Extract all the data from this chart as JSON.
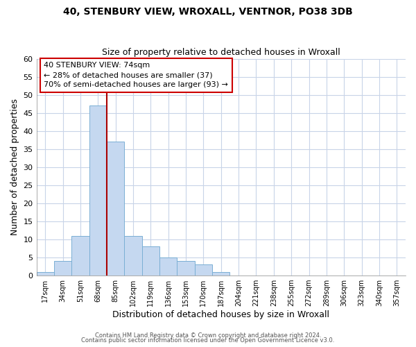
{
  "title": "40, STENBURY VIEW, WROXALL, VENTNOR, PO38 3DB",
  "subtitle": "Size of property relative to detached houses in Wroxall",
  "xlabel": "Distribution of detached houses by size in Wroxall",
  "ylabel": "Number of detached properties",
  "footer_line1": "Contains HM Land Registry data © Crown copyright and database right 2024.",
  "footer_line2": "Contains public sector information licensed under the Open Government Licence v3.0.",
  "bin_labels": [
    "17sqm",
    "34sqm",
    "51sqm",
    "68sqm",
    "85sqm",
    "102sqm",
    "119sqm",
    "136sqm",
    "153sqm",
    "170sqm",
    "187sqm",
    "204sqm",
    "221sqm",
    "238sqm",
    "255sqm",
    "272sqm",
    "289sqm",
    "306sqm",
    "323sqm",
    "340sqm",
    "357sqm"
  ],
  "bin_values": [
    1,
    4,
    11,
    47,
    37,
    11,
    8,
    5,
    4,
    3,
    1,
    0,
    0,
    0,
    0,
    0,
    0,
    0,
    0,
    0,
    0
  ],
  "bar_color": "#c5d8f0",
  "bar_edgecolor": "#7aafd4",
  "ylim": [
    0,
    60
  ],
  "yticks": [
    0,
    5,
    10,
    15,
    20,
    25,
    30,
    35,
    40,
    45,
    50,
    55,
    60
  ],
  "annotation_text_line1": "40 STENBURY VIEW: 74sqm",
  "annotation_text_line2": "← 28% of detached houses are smaller (37)",
  "annotation_text_line3": "70% of semi-detached houses are larger (93) →",
  "annotation_box_color": "#ffffff",
  "annotation_box_edgecolor": "#cc0000",
  "vline_color": "#aa0000",
  "background_color": "#ffffff",
  "grid_color": "#c8d4e8"
}
